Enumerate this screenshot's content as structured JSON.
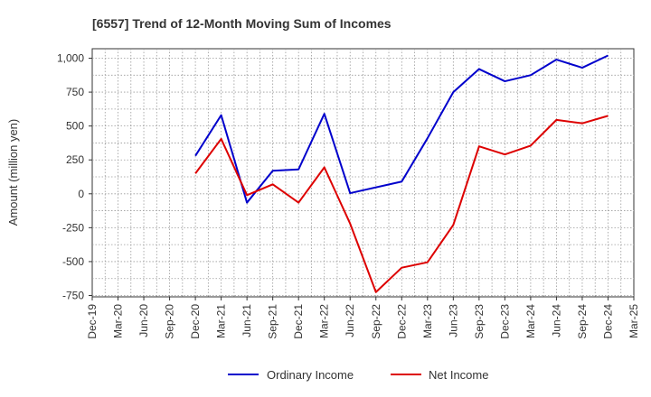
{
  "chart_data": {
    "type": "line",
    "title": "[6557]  Trend of 12-Month Moving Sum of Incomes",
    "xlabel": "",
    "ylabel": "Amount (million yen)",
    "ylim": [
      -760,
      1070
    ],
    "yticks": [
      -750,
      -500,
      -250,
      0,
      250,
      500,
      750,
      1000
    ],
    "ytick_labels": [
      "-750",
      "-500",
      "-250",
      "0",
      "250",
      "500",
      "750",
      "1,000"
    ],
    "categories": [
      "Dec-19",
      "Mar-20",
      "Jun-20",
      "Sep-20",
      "Dec-20",
      "Mar-21",
      "Jun-21",
      "Sep-21",
      "Dec-21",
      "Mar-22",
      "Jun-22",
      "Sep-22",
      "Dec-22",
      "Mar-23",
      "Jun-23",
      "Sep-23",
      "Dec-23",
      "Mar-24",
      "Jun-24",
      "Sep-24",
      "Dec-24",
      "Mar-25"
    ],
    "grid": true,
    "legend_position": "bottom",
    "series": [
      {
        "name": "Ordinary Income",
        "color": "#0000cc",
        "values": [
          null,
          null,
          null,
          null,
          280,
          580,
          -65,
          170,
          180,
          590,
          5,
          null,
          90,
          410,
          750,
          920,
          830,
          875,
          990,
          930,
          1020,
          null
        ]
      },
      {
        "name": "Net Income",
        "color": "#dd0000",
        "values": [
          null,
          null,
          null,
          null,
          150,
          405,
          -10,
          70,
          -65,
          195,
          -220,
          -725,
          -545,
          -505,
          -230,
          350,
          290,
          355,
          545,
          520,
          575,
          null
        ]
      }
    ]
  }
}
